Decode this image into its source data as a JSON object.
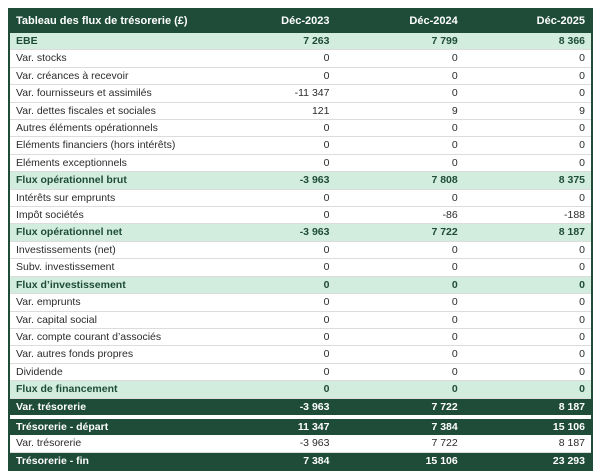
{
  "title": "Tableau des flux de trésorerie (£)",
  "colors": {
    "header_bg": "#1E4C39",
    "header_text": "#FFFFFF",
    "subtotal_bg": "#D2EDDD",
    "subtotal_text": "#1E4C39",
    "total_bg": "#1E4C39",
    "total_text": "#FFFFFF",
    "row_text": "#2B2B2B",
    "row_border": "#DCDCDC"
  },
  "chart_data": {
    "type": "table",
    "title": "Tableau des flux de trésorerie (£)",
    "columns": [
      "Déc-2023",
      "Déc-2024",
      "Déc-2025"
    ],
    "rows": [
      {
        "label": "EBE",
        "values": [
          "7 263",
          "7 799",
          "8 366"
        ],
        "style": "subtotal"
      },
      {
        "label": "Var. stocks",
        "values": [
          "0",
          "0",
          "0"
        ],
        "style": "normal"
      },
      {
        "label": "Var. créances à recevoir",
        "values": [
          "0",
          "0",
          "0"
        ],
        "style": "normal"
      },
      {
        "label": "Var. fournisseurs et assimilés",
        "values": [
          "-11 347",
          "0",
          "0"
        ],
        "style": "normal"
      },
      {
        "label": "Var. dettes fiscales et sociales",
        "values": [
          "121",
          "9",
          "9"
        ],
        "style": "normal"
      },
      {
        "label": "Autres éléments opérationnels",
        "values": [
          "0",
          "0",
          "0"
        ],
        "style": "normal"
      },
      {
        "label": "Eléments financiers (hors intérêts)",
        "values": [
          "0",
          "0",
          "0"
        ],
        "style": "normal"
      },
      {
        "label": "Eléments exceptionnels",
        "values": [
          "0",
          "0",
          "0"
        ],
        "style": "normal"
      },
      {
        "label": "Flux opérationnel brut",
        "values": [
          "-3 963",
          "7 808",
          "8 375"
        ],
        "style": "subtotal"
      },
      {
        "label": "Intérêts sur emprunts",
        "values": [
          "0",
          "0",
          "0"
        ],
        "style": "normal"
      },
      {
        "label": "Impôt sociétés",
        "values": [
          "0",
          "-86",
          "-188"
        ],
        "style": "normal"
      },
      {
        "label": "Flux opérationnel net",
        "values": [
          "-3 963",
          "7 722",
          "8 187"
        ],
        "style": "subtotal"
      },
      {
        "label": "Investissements (net)",
        "values": [
          "0",
          "0",
          "0"
        ],
        "style": "normal"
      },
      {
        "label": "Subv. investissement",
        "values": [
          "0",
          "0",
          "0"
        ],
        "style": "normal"
      },
      {
        "label": "Flux d’investissement",
        "values": [
          "0",
          "0",
          "0"
        ],
        "style": "subtotal"
      },
      {
        "label": "Var. emprunts",
        "values": [
          "0",
          "0",
          "0"
        ],
        "style": "normal"
      },
      {
        "label": "Var. capital social",
        "values": [
          "0",
          "0",
          "0"
        ],
        "style": "normal"
      },
      {
        "label": "Var. compte courant d’associés",
        "values": [
          "0",
          "0",
          "0"
        ],
        "style": "normal"
      },
      {
        "label": "Var. autres fonds propres",
        "values": [
          "0",
          "0",
          "0"
        ],
        "style": "normal"
      },
      {
        "label": "Dividende",
        "values": [
          "0",
          "0",
          "0"
        ],
        "style": "normal"
      },
      {
        "label": "Flux de financement",
        "values": [
          "0",
          "0",
          "0"
        ],
        "style": "subtotal"
      },
      {
        "label": "Var. trésorerie",
        "values": [
          "-3 963",
          "7 722",
          "8 187"
        ],
        "style": "total"
      },
      {
        "label": "",
        "values": [
          "",
          "",
          ""
        ],
        "style": "spacer"
      },
      {
        "label": "Trésorerie - départ",
        "values": [
          "11 347",
          "7 384",
          "15 106"
        ],
        "style": "total"
      },
      {
        "label": "Var. trésorerie",
        "values": [
          "-3 963",
          "7 722",
          "8 187"
        ],
        "style": "normal"
      },
      {
        "label": "Trésorerie - fin",
        "values": [
          "7 384",
          "15 106",
          "23 293"
        ],
        "style": "total"
      }
    ]
  }
}
